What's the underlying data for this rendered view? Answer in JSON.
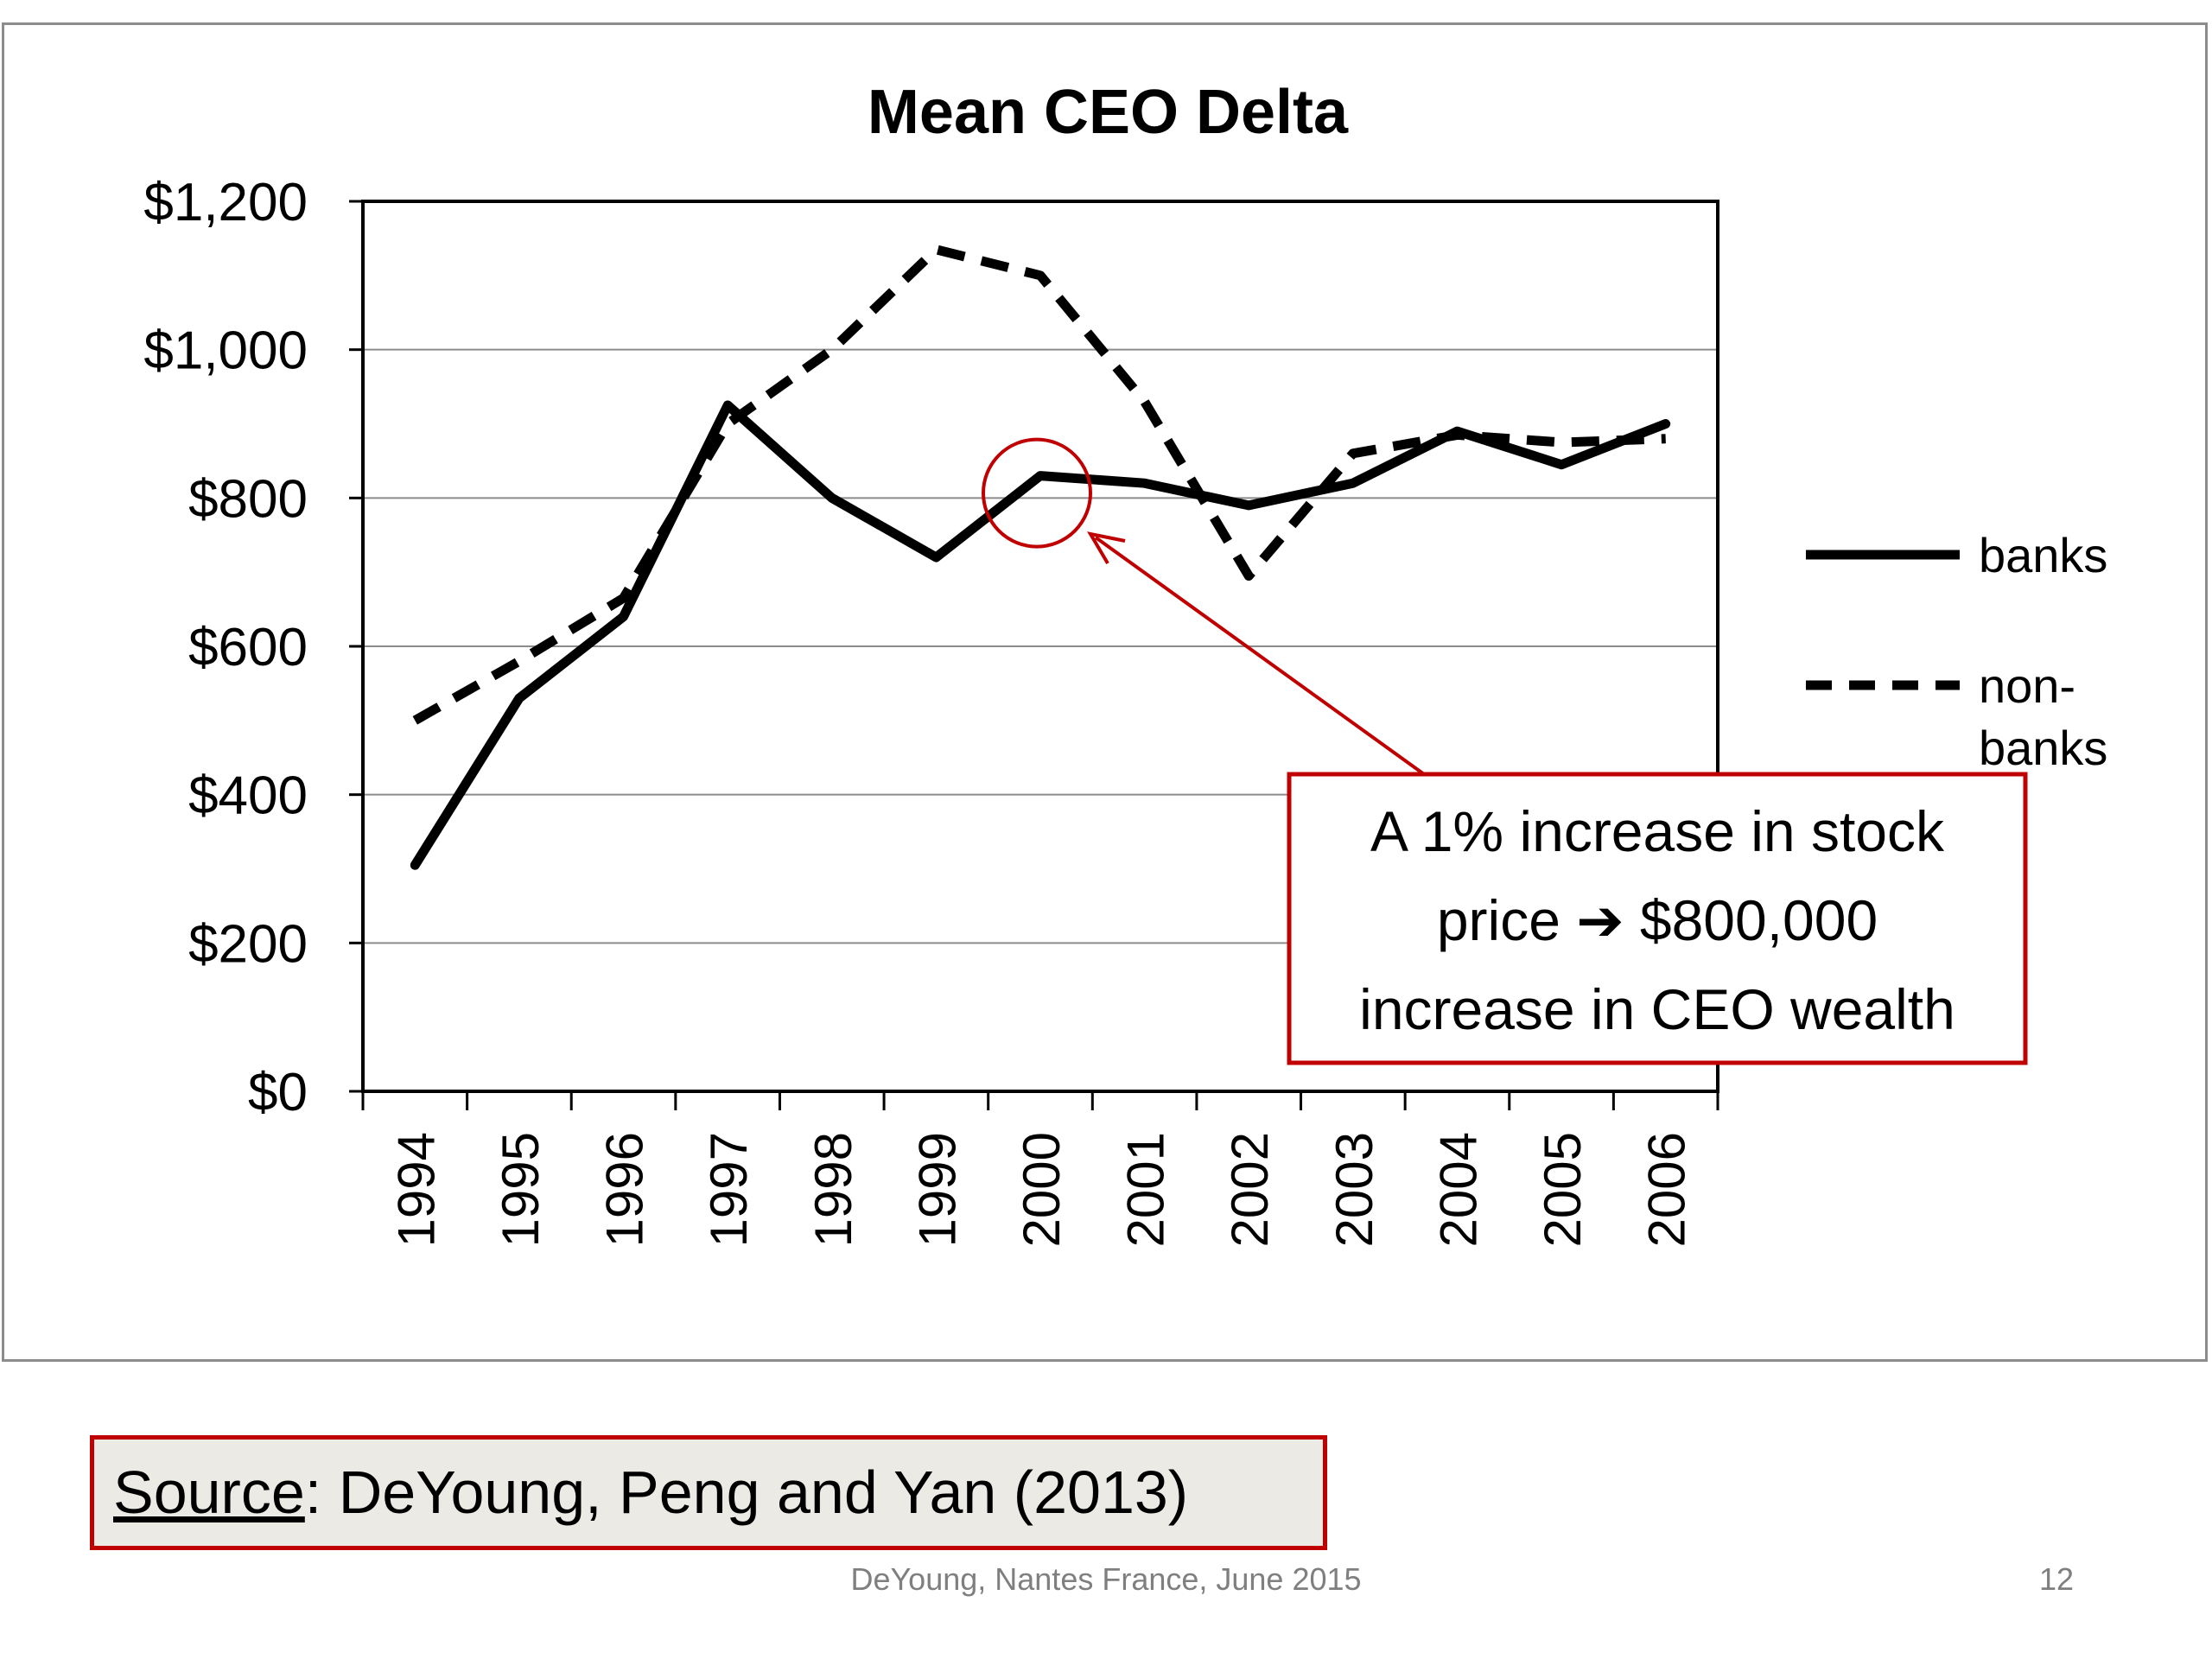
{
  "chart_data": {
    "type": "line",
    "title": "Mean CEO Delta",
    "xlabel": "",
    "ylabel": "",
    "x": [
      "1994",
      "1995",
      "1996",
      "1997",
      "1998",
      "1999",
      "2000",
      "2001",
      "2002",
      "2003",
      "2004",
      "2005",
      "2006"
    ],
    "ylim": [
      0,
      1200
    ],
    "yticks": [
      "$0",
      "$200",
      "$400",
      "$600",
      "$800",
      "$1,000",
      "$1,200"
    ],
    "ytick_values": [
      0,
      200,
      400,
      600,
      800,
      1000,
      1200
    ],
    "grid": true,
    "legend_position": "right",
    "series": [
      {
        "name": "banks",
        "style": "solid",
        "color": "#000000",
        "values": [
          305,
          530,
          640,
          925,
          800,
          720,
          830,
          820,
          790,
          820,
          890,
          845,
          900
        ]
      },
      {
        "name": "non-banks",
        "style": "dashed",
        "color": "#000000",
        "values": [
          500,
          580,
          665,
          900,
          1000,
          1135,
          1100,
          930,
          695,
          860,
          885,
          875,
          880
        ]
      }
    ],
    "annotation": {
      "lines": [
        "A 1% increase in stock",
        "price ➔ $800,000",
        "increase in CEO wealth"
      ],
      "target_x": "2000",
      "target_value": 830,
      "color": "#c00000"
    }
  },
  "source": {
    "label": "Source",
    "text": ":  DeYoung, Peng and Yan (2013)"
  },
  "footer": {
    "text": "DeYoung, Nantes France, June 2015",
    "page": "12"
  },
  "colors": {
    "accent": "#c00000",
    "source_bg": "#eceae4",
    "gridline": "#8c8c8c",
    "footer_text": "#7f7f7f"
  }
}
